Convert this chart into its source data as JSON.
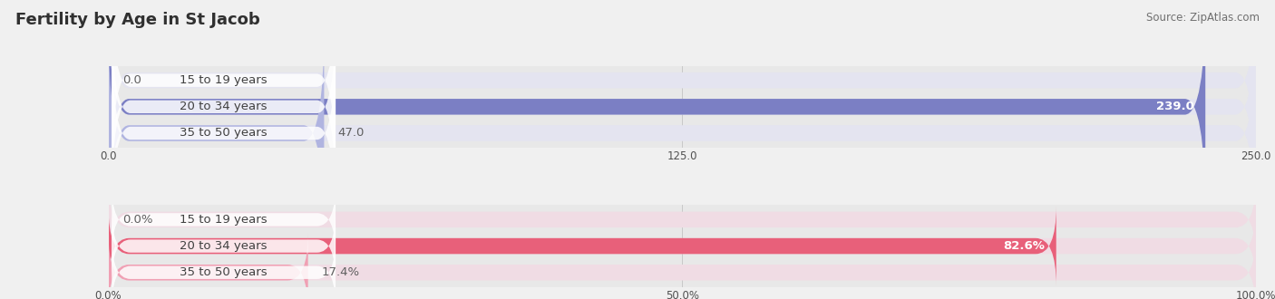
{
  "title": "Fertility by Age in St Jacob",
  "source": "Source: ZipAtlas.com",
  "top_chart": {
    "categories": [
      "15 to 19 years",
      "20 to 34 years",
      "35 to 50 years"
    ],
    "values": [
      0.0,
      239.0,
      47.0
    ],
    "xlim": [
      0,
      250
    ],
    "xticks": [
      0.0,
      125.0,
      250.0
    ],
    "xtick_labels": [
      "0.0",
      "125.0",
      "250.0"
    ],
    "bar_color_full": "#7b7fc4",
    "bar_color_light": "#b0b4e0",
    "bar_bg_color": "#e4e4f0",
    "value_threshold": 0.85
  },
  "bottom_chart": {
    "categories": [
      "15 to 19 years",
      "20 to 34 years",
      "35 to 50 years"
    ],
    "values": [
      0.0,
      82.6,
      17.4
    ],
    "xlim": [
      0,
      100
    ],
    "xticks": [
      0.0,
      50.0,
      100.0
    ],
    "xtick_labels": [
      "0.0%",
      "50.0%",
      "100.0%"
    ],
    "bar_color_full": "#e8607a",
    "bar_color_light": "#f0a0b4",
    "bar_bg_color": "#f0dce4",
    "value_threshold": 0.75
  },
  "label_color": "#505050",
  "value_color_inside": "#ffffff",
  "value_color_outside": "#606060",
  "bar_height": 0.6,
  "fig_bg_color": "#f0f0f0",
  "chart_bg_color": "#e8e8e8",
  "title_fontsize": 13,
  "source_fontsize": 8.5,
  "label_fontsize": 9.5,
  "tick_fontsize": 8.5,
  "label_pill_color": "#ffffff",
  "label_pill_alpha": 0.85
}
